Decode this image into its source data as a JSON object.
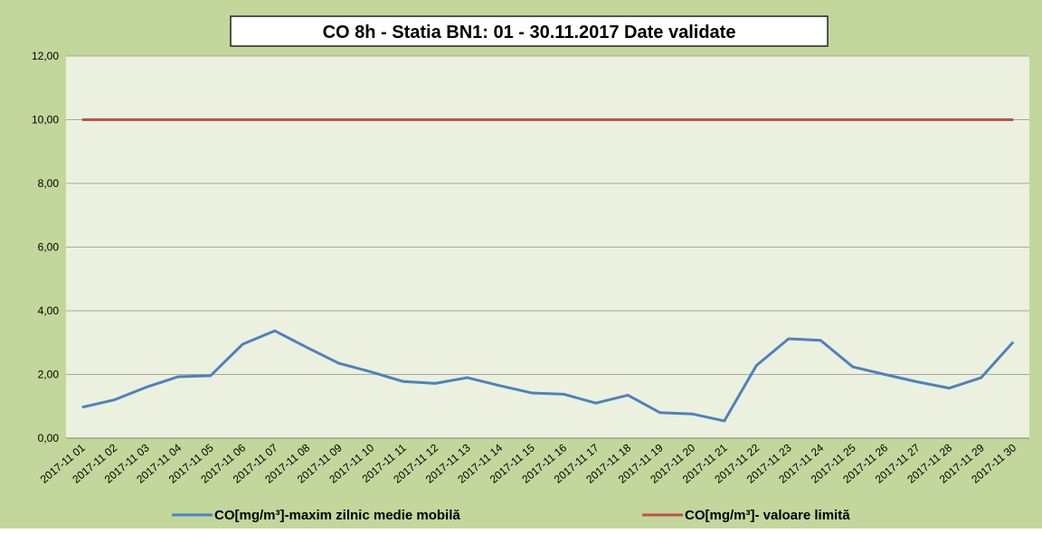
{
  "chart_data": {
    "type": "line",
    "title": "CO 8h - Statia BN1: 01 - 30.11.2017 Date validate",
    "categories": [
      "2017-11 01",
      "2017-11 02",
      "2017-11 03",
      "2017-11 04",
      "2017-11 05",
      "2017-11 06",
      "2017-11 07",
      "2017-11 08",
      "2017-11 09",
      "2017-11 10",
      "2017-11 11",
      "2017-11 12",
      "2017-11 13",
      "2017-11 14",
      "2017-11 15",
      "2017-11 16",
      "2017-11 17",
      "2017-11 18",
      "2017-11 19",
      "2017-11 20",
      "2017-11 21",
      "2017-11 22",
      "2017-11 23",
      "2017-11 24",
      "2017-11 25",
      "2017-11 26",
      "2017-11 27",
      "2017-11 28",
      "2017-11 29",
      "2017-11 30"
    ],
    "series": [
      {
        "name": "CO[mg/m³]-maxim zilnic medie mobilă",
        "color": "#4f81bd",
        "values": [
          0.97,
          1.2,
          1.6,
          1.93,
          1.96,
          2.95,
          3.37,
          2.85,
          2.35,
          2.08,
          1.78,
          1.72,
          1.9,
          1.65,
          1.42,
          1.38,
          1.1,
          1.35,
          0.8,
          0.76,
          0.54,
          2.28,
          3.12,
          3.07,
          2.24,
          2.0,
          1.77,
          1.57,
          1.9,
          3.02
        ]
      },
      {
        "name": "CO[mg/m³]- valoare limită",
        "color": "#c0504d",
        "values": [
          10,
          10,
          10,
          10,
          10,
          10,
          10,
          10,
          10,
          10,
          10,
          10,
          10,
          10,
          10,
          10,
          10,
          10,
          10,
          10,
          10,
          10,
          10,
          10,
          10,
          10,
          10,
          10,
          10,
          10
        ]
      }
    ],
    "ylim": [
      0,
      12
    ],
    "yticks": [
      {
        "value": 0,
        "label": "0,00"
      },
      {
        "value": 2,
        "label": "2,00"
      },
      {
        "value": 4,
        "label": "4,00"
      },
      {
        "value": 6,
        "label": "6,00"
      },
      {
        "value": 8,
        "label": "8,00"
      },
      {
        "value": 10,
        "label": "10,00"
      },
      {
        "value": 12,
        "label": "12,00"
      }
    ],
    "grid": true,
    "legend": "bottom"
  }
}
